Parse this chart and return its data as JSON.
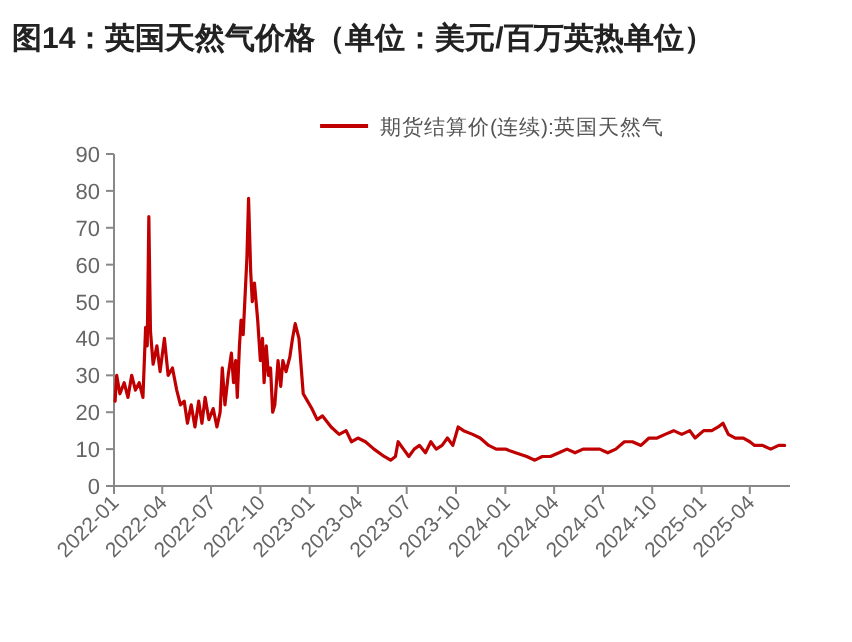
{
  "chart_data": {
    "type": "line",
    "title": "图14：英国天然气价格（单位：美元/百万英热单位）",
    "series": [
      {
        "name": "期货结算价(连续):英国天然气",
        "color": "#c00000",
        "x": [
          "2022-01-03",
          "2022-01-06",
          "2022-01-12",
          "2022-01-20",
          "2022-01-27",
          "2022-02-03",
          "2022-02-10",
          "2022-02-17",
          "2022-02-24",
          "2022-03-01",
          "2022-03-04",
          "2022-03-07",
          "2022-03-10",
          "2022-03-15",
          "2022-03-22",
          "2022-03-28",
          "2022-04-05",
          "2022-04-12",
          "2022-04-20",
          "2022-04-28",
          "2022-05-05",
          "2022-05-12",
          "2022-05-18",
          "2022-05-25",
          "2022-06-01",
          "2022-06-08",
          "2022-06-14",
          "2022-06-20",
          "2022-06-27",
          "2022-07-05",
          "2022-07-12",
          "2022-07-18",
          "2022-07-22",
          "2022-07-27",
          "2022-08-02",
          "2022-08-08",
          "2022-08-12",
          "2022-08-16",
          "2022-08-19",
          "2022-08-23",
          "2022-08-26",
          "2022-08-30",
          "2022-09-02",
          "2022-09-06",
          "2022-09-09",
          "2022-09-13",
          "2022-09-16",
          "2022-09-20",
          "2022-09-26",
          "2022-10-01",
          "2022-10-05",
          "2022-10-08",
          "2022-10-12",
          "2022-10-16",
          "2022-10-20",
          "2022-10-24",
          "2022-10-28",
          "2022-11-03",
          "2022-11-08",
          "2022-11-12",
          "2022-11-18",
          "2022-11-25",
          "2022-11-30",
          "2022-12-05",
          "2022-12-12",
          "2022-12-20",
          "2022-12-28",
          "2023-01-05",
          "2023-01-15",
          "2023-01-25",
          "2023-02-10",
          "2023-02-25",
          "2023-03-10",
          "2023-03-20",
          "2023-04-01",
          "2023-04-15",
          "2023-05-01",
          "2023-05-20",
          "2023-06-01",
          "2023-06-10",
          "2023-06-15",
          "2023-06-25",
          "2023-07-05",
          "2023-07-15",
          "2023-07-25",
          "2023-08-05",
          "2023-08-15",
          "2023-08-25",
          "2023-09-05",
          "2023-09-15",
          "2023-09-25",
          "2023-10-05",
          "2023-10-15",
          "2023-11-01",
          "2023-11-15",
          "2023-12-01",
          "2023-12-15",
          "2024-01-01",
          "2024-01-20",
          "2024-02-10",
          "2024-02-25",
          "2024-03-10",
          "2024-03-25",
          "2024-04-10",
          "2024-04-25",
          "2024-05-10",
          "2024-05-25",
          "2024-06-10",
          "2024-06-25",
          "2024-07-10",
          "2024-07-25",
          "2024-08-10",
          "2024-08-25",
          "2024-09-10",
          "2024-09-25",
          "2024-10-10",
          "2024-10-25",
          "2024-11-10",
          "2024-11-25",
          "2024-12-10",
          "2024-12-20",
          "2025-01-05",
          "2025-01-20",
          "2025-02-01",
          "2025-02-10",
          "2025-02-20",
          "2025-03-05",
          "2025-03-20",
          "2025-04-01",
          "2025-04-10",
          "2025-04-25",
          "2025-05-10",
          "2025-05-25",
          "2025-06-05"
        ],
        "values": [
          23,
          30,
          25,
          28,
          24,
          30,
          26,
          28,
          24,
          43,
          38,
          73,
          42,
          33,
          38,
          31,
          40,
          30,
          32,
          26,
          22,
          23,
          17,
          22,
          16,
          23,
          17,
          24,
          18,
          21,
          16,
          20,
          32,
          22,
          30,
          36,
          28,
          34,
          24,
          38,
          45,
          41,
          50,
          62,
          78,
          58,
          50,
          55,
          45,
          34,
          40,
          28,
          38,
          30,
          32,
          20,
          22,
          34,
          27,
          34,
          31,
          35,
          40,
          44,
          40,
          25,
          23,
          21,
          18,
          19,
          16,
          14,
          15,
          12,
          13,
          12,
          10,
          8,
          7,
          8,
          12,
          10,
          8,
          10,
          11,
          9,
          12,
          10,
          11,
          13,
          11,
          16,
          15,
          14,
          13,
          11,
          10,
          10,
          9,
          8,
          7,
          8,
          8,
          9,
          10,
          9,
          10,
          10,
          10,
          9,
          10,
          12,
          12,
          11,
          13,
          13,
          14,
          15,
          14,
          15,
          13,
          15,
          15,
          16,
          17,
          14,
          13,
          13,
          12,
          11,
          11,
          10,
          11,
          11
        ]
      }
    ],
    "xlim": [
      "2022-01-01",
      "2025-06-15"
    ],
    "xticks": [
      "2022-01",
      "2022-04",
      "2022-07",
      "2022-10",
      "2023-01",
      "2023-04",
      "2023-07",
      "2023-10",
      "2024-01",
      "2024-04",
      "2024-07",
      "2024-10",
      "2025-01",
      "2025-04"
    ],
    "ylim": [
      0,
      90
    ],
    "yticks": [
      0,
      10,
      20,
      30,
      40,
      50,
      60,
      70,
      80,
      90
    ],
    "legend": "top",
    "grid": false
  }
}
